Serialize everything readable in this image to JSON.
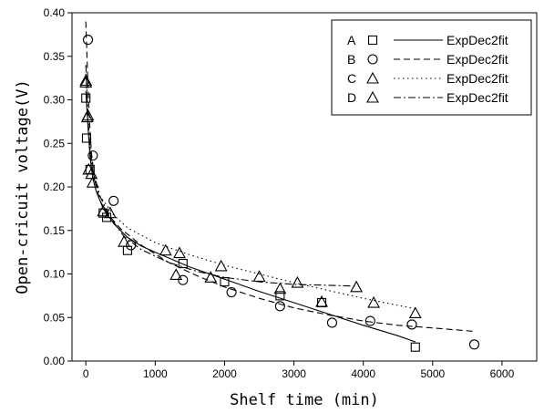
{
  "chart_data": {
    "type": "scatter",
    "title": "",
    "xlabel": "Shelf time (min)",
    "ylabel": "Open-cricuit voltage(V)",
    "xlim": [
      -200,
      6500
    ],
    "ylim": [
      0.0,
      0.4
    ],
    "xticks": [
      "0",
      "1000",
      "2000",
      "3000",
      "4000",
      "5000",
      "6000"
    ],
    "yticks": [
      "0.00",
      "0.05",
      "0.10",
      "0.15",
      "0.20",
      "0.25",
      "0.30",
      "0.35",
      "0.40"
    ],
    "grid": false,
    "legend_position": "top-right",
    "series": [
      {
        "name": "A",
        "marker": "square",
        "fit_label": "ExpDec2fit",
        "fit_style": "solid",
        "points": [
          [
            0,
            0.302
          ],
          [
            10,
            0.256
          ],
          [
            60,
            0.22
          ],
          [
            250,
            0.17
          ],
          [
            300,
            0.165
          ],
          [
            600,
            0.127
          ],
          [
            1400,
            0.112
          ],
          [
            2000,
            0.091
          ],
          [
            2800,
            0.075
          ],
          [
            3400,
            0.067
          ],
          [
            4750,
            0.016
          ]
        ],
        "fit": [
          [
            0,
            0.31
          ],
          [
            30,
            0.27
          ],
          [
            60,
            0.235
          ],
          [
            100,
            0.21
          ],
          [
            150,
            0.195
          ],
          [
            250,
            0.175
          ],
          [
            400,
            0.158
          ],
          [
            600,
            0.142
          ],
          [
            800,
            0.132
          ],
          [
            1000,
            0.125
          ],
          [
            1500,
            0.108
          ],
          [
            2000,
            0.094
          ],
          [
            2500,
            0.08
          ],
          [
            3000,
            0.067
          ],
          [
            3500,
            0.054
          ],
          [
            4000,
            0.041
          ],
          [
            4500,
            0.029
          ],
          [
            4750,
            0.022
          ]
        ]
      },
      {
        "name": "B",
        "marker": "circle",
        "fit_label": "ExpDec2fit",
        "fit_style": "dash",
        "points": [
          [
            30,
            0.369
          ],
          [
            100,
            0.236
          ],
          [
            400,
            0.184
          ],
          [
            650,
            0.133
          ],
          [
            1400,
            0.093
          ],
          [
            2100,
            0.079
          ],
          [
            2800,
            0.063
          ],
          [
            3550,
            0.044
          ],
          [
            4100,
            0.046
          ],
          [
            4700,
            0.042
          ],
          [
            5600,
            0.019
          ]
        ],
        "fit": [
          [
            0,
            0.39
          ],
          [
            25,
            0.33
          ],
          [
            50,
            0.28
          ],
          [
            80,
            0.24
          ],
          [
            120,
            0.21
          ],
          [
            200,
            0.185
          ],
          [
            300,
            0.17
          ],
          [
            500,
            0.152
          ],
          [
            800,
            0.133
          ],
          [
            1200,
            0.113
          ],
          [
            1600,
            0.098
          ],
          [
            2000,
            0.085
          ],
          [
            2500,
            0.072
          ],
          [
            3000,
            0.061
          ],
          [
            3500,
            0.053
          ],
          [
            4000,
            0.046
          ],
          [
            4500,
            0.041
          ],
          [
            5000,
            0.038
          ],
          [
            5600,
            0.034
          ]
        ]
      },
      {
        "name": "C",
        "marker": "triangle",
        "fit_label": "ExpDec2fit",
        "fit_style": "dot",
        "points": [
          [
            0,
            0.322
          ],
          [
            20,
            0.28
          ],
          [
            40,
            0.22
          ],
          [
            100,
            0.205
          ],
          [
            350,
            0.17
          ],
          [
            1150,
            0.127
          ],
          [
            1350,
            0.124
          ],
          [
            1950,
            0.109
          ],
          [
            2500,
            0.097
          ],
          [
            3050,
            0.09
          ],
          [
            4150,
            0.067
          ],
          [
            4750,
            0.055
          ]
        ],
        "fit": [
          [
            0,
            0.33
          ],
          [
            30,
            0.275
          ],
          [
            60,
            0.24
          ],
          [
            100,
            0.215
          ],
          [
            200,
            0.19
          ],
          [
            400,
            0.168
          ],
          [
            600,
            0.153
          ],
          [
            1000,
            0.136
          ],
          [
            1500,
            0.122
          ],
          [
            2000,
            0.11
          ],
          [
            2500,
            0.1
          ],
          [
            3000,
            0.09
          ],
          [
            3500,
            0.081
          ],
          [
            4000,
            0.072
          ],
          [
            4500,
            0.064
          ],
          [
            4750,
            0.06
          ]
        ]
      },
      {
        "name": "D",
        "marker": "triangle",
        "fit_label": "ExpDec2fit",
        "fit_style": "dashdot",
        "points": [
          [
            0,
            0.32
          ],
          [
            30,
            0.282
          ],
          [
            80,
            0.215
          ],
          [
            250,
            0.172
          ],
          [
            550,
            0.137
          ],
          [
            1300,
            0.099
          ],
          [
            1800,
            0.096
          ],
          [
            2800,
            0.083
          ],
          [
            3400,
            0.068
          ],
          [
            3900,
            0.085
          ]
        ],
        "fit": [
          [
            0,
            0.34
          ],
          [
            30,
            0.28
          ],
          [
            60,
            0.245
          ],
          [
            100,
            0.22
          ],
          [
            200,
            0.19
          ],
          [
            350,
            0.165
          ],
          [
            550,
            0.143
          ],
          [
            800,
            0.128
          ],
          [
            1200,
            0.113
          ],
          [
            1600,
            0.103
          ],
          [
            2000,
            0.096
          ],
          [
            2500,
            0.091
          ],
          [
            3000,
            0.088
          ],
          [
            3500,
            0.087
          ],
          [
            3900,
            0.086
          ]
        ]
      }
    ]
  }
}
